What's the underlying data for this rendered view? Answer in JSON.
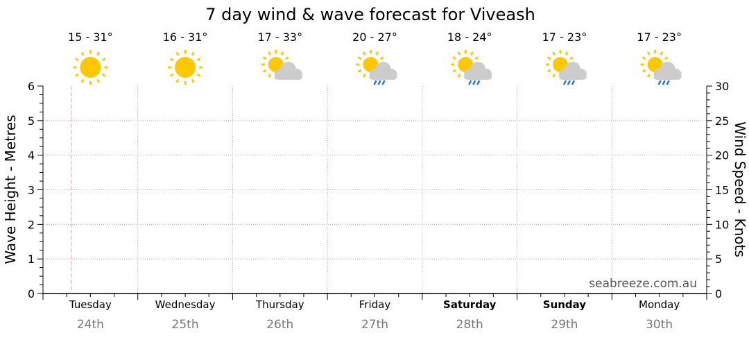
{
  "chart_data": {
    "type": "line",
    "title": "7 day wind & wave forecast for Viveash",
    "ylabel": "Wave Height - Metres",
    "y2label": "Wind Speed - Knots",
    "ylim": [
      0,
      6
    ],
    "y2lim": [
      0,
      30
    ],
    "yticks": [
      "0",
      "1",
      "2",
      "3",
      "4",
      "5",
      "6"
    ],
    "y2ticks": [
      "0",
      "5",
      "10",
      "15",
      "20",
      "25",
      "30"
    ],
    "grid": true,
    "series": [],
    "watermark": "seabreeze.com.au",
    "days": [
      {
        "day": "Tuesday",
        "date": "24th",
        "temp": "15 - 31°",
        "icon": "sunny-icon",
        "bold": false
      },
      {
        "day": "Wednesday",
        "date": "25th",
        "temp": "16 - 31°",
        "icon": "sunny-icon",
        "bold": false
      },
      {
        "day": "Thursday",
        "date": "26th",
        "temp": "17 - 33°",
        "icon": "partly-cloudy-icon",
        "bold": false
      },
      {
        "day": "Friday",
        "date": "27th",
        "temp": "20 - 27°",
        "icon": "partly-cloudy-rain-icon",
        "bold": false
      },
      {
        "day": "Saturday",
        "date": "28th",
        "temp": "18 - 24°",
        "icon": "partly-cloudy-rain-icon",
        "bold": true
      },
      {
        "day": "Sunday",
        "date": "29th",
        "temp": "17 - 23°",
        "icon": "partly-cloudy-rain-icon",
        "bold": true
      },
      {
        "day": "Monday",
        "date": "30th",
        "temp": "17 - 23°",
        "icon": "partly-cloudy-rain-icon",
        "bold": false
      }
    ],
    "colors": {
      "sun": "#FFC800",
      "cloud": "#CCCCCC",
      "rain": "#1E6FFF",
      "now_line": "#F4A0B0",
      "grid": "#AAAAAA",
      "date": "#777777"
    }
  }
}
